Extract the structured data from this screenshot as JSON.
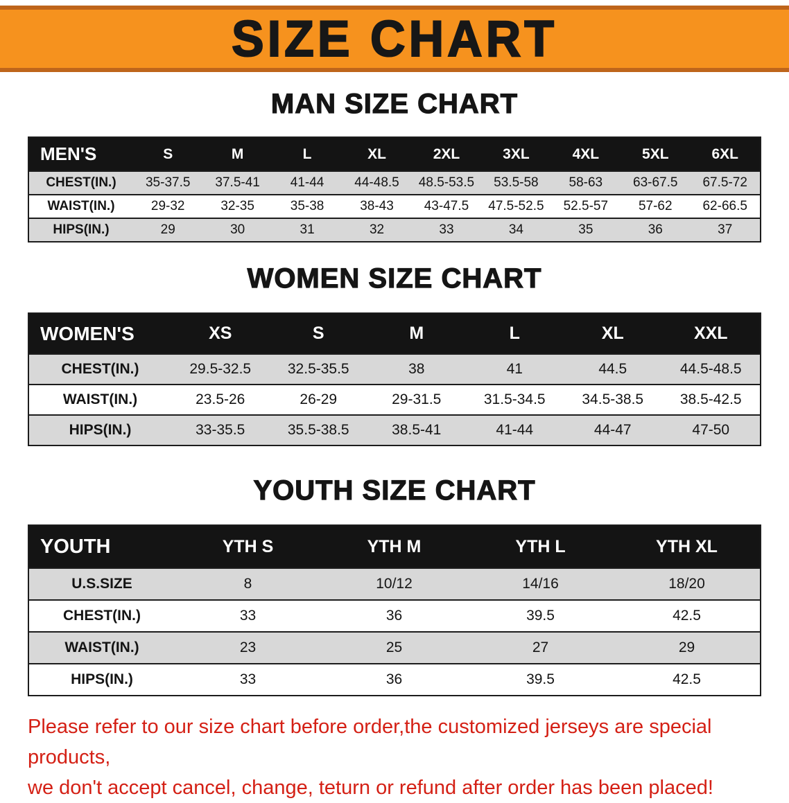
{
  "banner": {
    "title": "SIZE CHART"
  },
  "sections": [
    {
      "heading": "MAN SIZE CHART",
      "table": {
        "header_label": "MEN'S",
        "columns": [
          "S",
          "M",
          "L",
          "XL",
          "2XL",
          "3XL",
          "4XL",
          "5XL",
          "6XL"
        ],
        "rows": [
          {
            "label": "CHEST(IN.)",
            "values": [
              "35-37.5",
              "37.5-41",
              "41-44",
              "44-48.5",
              "48.5-53.5",
              "53.5-58",
              "58-63",
              "63-67.5",
              "67.5-72"
            ]
          },
          {
            "label": "WAIST(IN.)",
            "values": [
              "29-32",
              "32-35",
              "35-38",
              "38-43",
              "43-47.5",
              "47.5-52.5",
              "52.5-57",
              "57-62",
              "62-66.5"
            ]
          },
          {
            "label": "HIPS(IN.)",
            "values": [
              "29",
              "30",
              "31",
              "32",
              "33",
              "34",
              "35",
              "36",
              "37"
            ]
          }
        ]
      }
    },
    {
      "heading": "WOMEN SIZE CHART",
      "table": {
        "header_label": "WOMEN'S",
        "columns": [
          "XS",
          "S",
          "M",
          "L",
          "XL",
          "XXL"
        ],
        "rows": [
          {
            "label": "CHEST(IN.)",
            "values": [
              "29.5-32.5",
              "32.5-35.5",
              "38",
              "41",
              "44.5",
              "44.5-48.5"
            ]
          },
          {
            "label": "WAIST(IN.)",
            "values": [
              "23.5-26",
              "26-29",
              "29-31.5",
              "31.5-34.5",
              "34.5-38.5",
              "38.5-42.5"
            ]
          },
          {
            "label": "HIPS(IN.)",
            "values": [
              "33-35.5",
              "35.5-38.5",
              "38.5-41",
              "41-44",
              "44-47",
              "47-50"
            ]
          }
        ]
      }
    },
    {
      "heading": "YOUTH SIZE CHART",
      "table": {
        "header_label": "YOUTH",
        "columns": [
          "YTH S",
          "YTH M",
          "YTH L",
          "YTH XL"
        ],
        "rows": [
          {
            "label": "U.S.SIZE",
            "values": [
              "8",
              "10/12",
              "14/16",
              "18/20"
            ]
          },
          {
            "label": "CHEST(IN.)",
            "values": [
              "33",
              "36",
              "39.5",
              "42.5"
            ]
          },
          {
            "label": "WAIST(IN.)",
            "values": [
              "23",
              "25",
              "27",
              "29"
            ]
          },
          {
            "label": "HIPS(IN.)",
            "values": [
              "33",
              "36",
              "39.5",
              "42.5"
            ]
          }
        ]
      }
    }
  ],
  "disclaimer": {
    "line1": "Please refer to our size chart before order,the customized jerseys are special products,",
    "line2": "we don't accept cancel, change, teturn or refund after order has been placed!"
  },
  "colors": {
    "banner_orange": "#F6921E",
    "banner_edge": "#BE651B",
    "header_black": "#141414",
    "row_gray": "#D8D8D8",
    "disclaimer_red": "#D42015"
  }
}
